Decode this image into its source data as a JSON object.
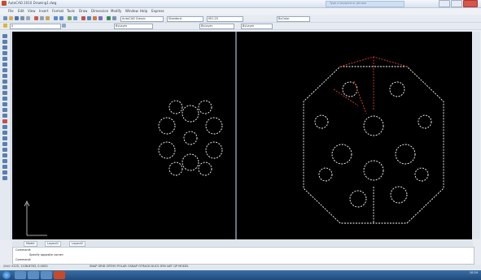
{
  "window": {
    "title": "AutoCAD 2010  Drawing1.dwg",
    "search_placeholder": "Type a keyword or phrase"
  },
  "menu": {
    "items": [
      "File",
      "Edit",
      "View",
      "Insert",
      "Format",
      "Tools",
      "Draw",
      "Dimension",
      "Modify",
      "Window",
      "Help",
      "Express"
    ]
  },
  "toolbar": {
    "workspace_combo": "AutoCAD Classic",
    "layer_combo": "0",
    "color_combo": "ByLayer",
    "linetype_combo": "ByLayer",
    "lineweight_combo": "ByLayer",
    "plotstyle_combo": "ByColor",
    "style_combo": "Standard",
    "dimstyle_combo": "ISO-25"
  },
  "model_tabs": [
    "Model",
    "Layout1",
    "Layout2"
  ],
  "command": {
    "line1": "Command:",
    "line2": "Specify opposite corner:",
    "line3": "Command:"
  },
  "status": {
    "coords": "2547.3125, 1108.8763, 0.0000",
    "modes": "SNAP GRID ORTHO POLAR OSNAP OTRACK DUCS DYN LWT QP MODEL"
  },
  "taskbar": {
    "time": "10:24"
  },
  "colors": {
    "viewport_bg": "#000000",
    "drawing_white": "#ffffff",
    "drawing_red": "#e04030"
  }
}
